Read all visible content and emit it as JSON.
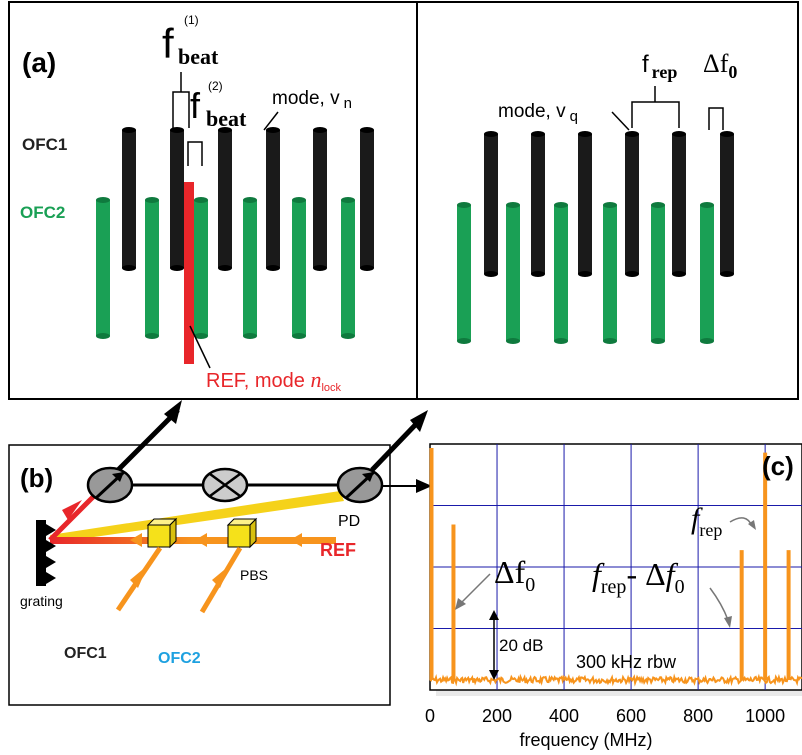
{
  "panel_a": {
    "label": "(a)",
    "fbeat1_main": "f",
    "fbeat1_sup": "(1)",
    "fbeat1_sub": "beat",
    "fbeat2_main": "f",
    "fbeat2_sup": "(2)",
    "fbeat2_sub": "beat",
    "mode_n_text": "mode, v",
    "mode_n_sub": "n",
    "ofc1": "OFC1",
    "ofc2": "OFC2",
    "ref_text": "REF, mode ",
    "ref_n": "n",
    "ref_sub": "lock",
    "mode_q_text": "mode, v",
    "mode_q_sub": "q",
    "frep_main": "f",
    "frep_sub": "rep",
    "df0_main": "Δf",
    "df0_sub": "0"
  },
  "panel_b": {
    "label": "(b)",
    "pd": "PD",
    "ref": "REF",
    "grating": "grating",
    "pbs": "PBS",
    "ofc1": "OFC1",
    "ofc2": "OFC2",
    "colors": {
      "ofc1": "#222222",
      "ofc2": "#1ea1e0",
      "ref": "#e8262a",
      "orange": "#f7941d",
      "yellow": "#f5e11a"
    }
  },
  "panel_c": {
    "label": "(c)",
    "frep_f": "f",
    "frep_sub": "rep",
    "frep_minus_f": "f",
    "frep_minus_sub": "rep",
    "frep_minus_mid": "- Δ",
    "frep_minus_f2": "f",
    "frep_minus_sub2": "0",
    "df0_main": "Δf",
    "df0_sub": "0",
    "scale": "20 dB",
    "rbw": "300 kHz rbw",
    "xlabel": "frequency (MHz)"
  },
  "chart_data": {
    "type": "line",
    "xlabel": "frequency (MHz)",
    "x_ticks": [
      0,
      200,
      400,
      600,
      800,
      1000
    ],
    "xlim": [
      0,
      1110
    ],
    "grid": true,
    "peaks": [
      {
        "x": 0,
        "relative_height": 1.0
      },
      {
        "x": 70,
        "relative_height": 0.67
      },
      {
        "x": 930,
        "relative_height": 0.56
      },
      {
        "x": 1000,
        "relative_height": 0.98
      },
      {
        "x": 1070,
        "relative_height": 0.56
      }
    ],
    "line_color": "#f7941d",
    "grid_color": "#1a1aaa"
  }
}
